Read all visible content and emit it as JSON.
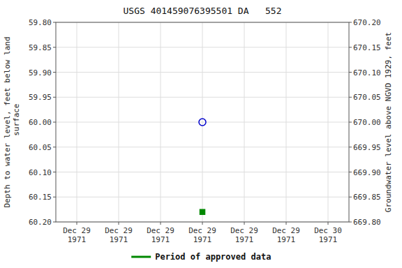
{
  "chart_data": {
    "type": "scatter",
    "title": "USGS 401459076395501 DA   552",
    "y_label": "Depth to water level, feet below land\n surface",
    "y2_label": "Groundwater level above NGVD 1929, feet",
    "categories": [
      "Dec 29\n1971",
      "Dec 29\n1971",
      "Dec 29\n1971",
      "Dec 29\n1971",
      "Dec 29\n1971",
      "Dec 29\n1971",
      "Dec 30\n1971"
    ],
    "series": [
      {
        "color": "#0000cc",
        "marker": "open-circle",
        "values": [
          null,
          null,
          null,
          60.0,
          null,
          null,
          null
        ]
      },
      {
        "color": "#008800",
        "marker": "square",
        "values": [
          null,
          null,
          null,
          60.18,
          null,
          null,
          null
        ]
      }
    ],
    "ylim": [
      60.2,
      59.8
    ],
    "yticks": [
      {
        "value": 59.8,
        "label": "59.80"
      },
      {
        "value": 59.85,
        "label": "59.85"
      },
      {
        "value": 59.9,
        "label": "59.90"
      },
      {
        "value": 59.95,
        "label": "59.95"
      },
      {
        "value": 60.0,
        "label": "60.00"
      },
      {
        "value": 60.05,
        "label": "60.05"
      },
      {
        "value": 60.1,
        "label": "60.10"
      },
      {
        "value": 60.15,
        "label": "60.15"
      },
      {
        "value": 60.2,
        "label": "60.20"
      }
    ],
    "y2lim": [
      669.8,
      670.2
    ],
    "y2ticks": [
      {
        "value": 670.2,
        "label": "670.20"
      },
      {
        "value": 670.15,
        "label": "670.15"
      },
      {
        "value": 670.1,
        "label": "670.10"
      },
      {
        "value": 670.05,
        "label": "670.05"
      },
      {
        "value": 670.0,
        "label": "670.00"
      },
      {
        "value": 669.95,
        "label": "669.95"
      },
      {
        "value": 669.9,
        "label": "669.90"
      },
      {
        "value": 669.85,
        "label": "669.85"
      },
      {
        "value": 669.8,
        "label": "669.80"
      }
    ],
    "grid": true,
    "legend": "bottom",
    "legend_items": [
      {
        "name": "Period of approved data",
        "color": "#008800",
        "line_style": "solid"
      }
    ]
  }
}
